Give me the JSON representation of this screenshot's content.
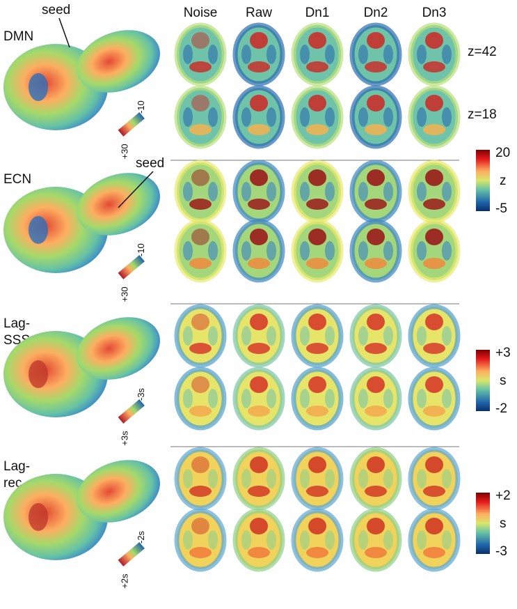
{
  "columns": [
    {
      "label": "Noise",
      "color": "#d7191c"
    },
    {
      "label": "Raw",
      "color": "#2c7bb6"
    },
    {
      "label": "Dn1",
      "color": "#111111"
    },
    {
      "label": "Dn2",
      "color": "#111111"
    },
    {
      "label": "Dn3",
      "color": "#111111"
    }
  ],
  "slice_labels": [
    "z=42",
    "z=18"
  ],
  "rows": [
    {
      "label_lines": [
        "DMN"
      ],
      "annotation": "seed",
      "surface_bar": [
        "+30",
        "-10"
      ],
      "colorbar": null
    },
    {
      "label_lines": [
        "ECN"
      ],
      "annotation": "seed",
      "surface_bar": [
        "+30",
        "-10"
      ],
      "colorbar": [
        "20",
        "z",
        "-5"
      ]
    },
    {
      "label_lines": [
        "Lag-",
        "SSS"
      ],
      "annotation": null,
      "surface_bar": [
        "+3s",
        "-3s"
      ],
      "colorbar": [
        "+3",
        "s",
        "-2"
      ]
    },
    {
      "label_lines": [
        "Lag-",
        "rec"
      ],
      "annotation": null,
      "surface_bar": [
        "+2s",
        "-2s"
      ],
      "colorbar": [
        "+2",
        "s",
        "-3"
      ]
    }
  ]
}
